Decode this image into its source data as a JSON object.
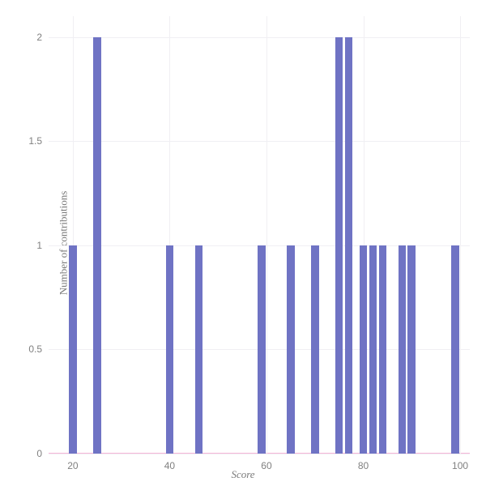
{
  "chart": {
    "type": "histogram",
    "xlabel": "Score",
    "ylabel": "Number of contributions",
    "xlabel_fontstyle": "italic",
    "label_fontsize": 13,
    "label_color": "#7a7a7a",
    "xlim": [
      15,
      102
    ],
    "ylim": [
      0,
      2.1
    ],
    "xtick_step": 20,
    "xticks": [
      20,
      40,
      60,
      80,
      100
    ],
    "yticks": [
      0,
      0.5,
      1,
      1.5,
      2
    ],
    "ytick_labels": [
      "0",
      "0.5",
      "1",
      "1.5",
      "2"
    ],
    "xtick_labels": [
      "20",
      "40",
      "60",
      "80",
      "100"
    ],
    "tick_fontsize": 12,
    "tick_color": "#808080",
    "background_color": "#ffffff",
    "grid_color": "#f0eff3",
    "axis_line_color": "#f5b5d8",
    "bar_color": "#6f73c4",
    "bar_width_units": 1.6,
    "bars": [
      {
        "x": 20,
        "y": 1
      },
      {
        "x": 25,
        "y": 2
      },
      {
        "x": 40,
        "y": 1
      },
      {
        "x": 46,
        "y": 1
      },
      {
        "x": 59,
        "y": 1
      },
      {
        "x": 65,
        "y": 1
      },
      {
        "x": 70,
        "y": 1
      },
      {
        "x": 75,
        "y": 2
      },
      {
        "x": 77,
        "y": 2
      },
      {
        "x": 80,
        "y": 1
      },
      {
        "x": 82,
        "y": 1
      },
      {
        "x": 84,
        "y": 1
      },
      {
        "x": 88,
        "y": 1
      },
      {
        "x": 90,
        "y": 1
      },
      {
        "x": 99,
        "y": 1
      }
    ]
  }
}
